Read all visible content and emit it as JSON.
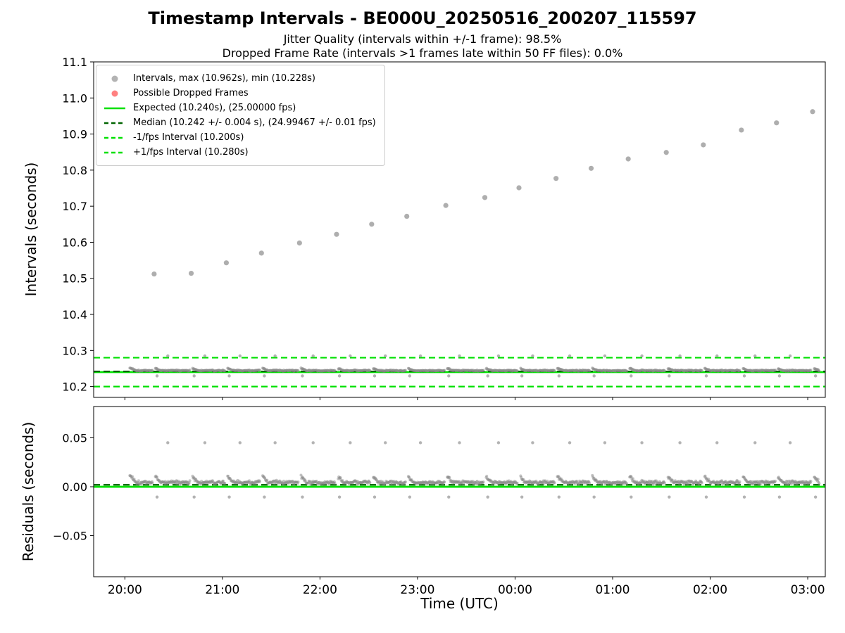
{
  "title": "Timestamp Intervals - BE000U_20250516_200207_115597",
  "subtitles": [
    "Jitter Quality (intervals within +/-1 frame): 98.5%",
    "Dropped Frame Rate (intervals >1 frames late within 50 FF files): 0.0%"
  ],
  "xlabel": "Time (UTC)",
  "seed": 1337,
  "colors": {
    "lime": "#00e000",
    "dark_green": "#006400",
    "gray_marker": "#9a9a9a",
    "band_gray": "#8a8a8a",
    "red_marker": "#ff5555",
    "axis": "#000000",
    "legend_border": "#cccccc"
  },
  "chart_data": [
    {
      "type": "scatter",
      "ylabel": "Intervals (seconds)",
      "ylim": [
        10.17,
        11.1
      ],
      "yticks": [
        10.2,
        10.3,
        10.4,
        10.5,
        10.6,
        10.7,
        10.8,
        10.9,
        11.0,
        11.1
      ],
      "xlim_hours": [
        -0.32,
        7.18
      ],
      "xticks_hours": [
        0,
        1,
        2,
        3,
        4,
        5,
        6,
        7
      ],
      "xtick_labels": [
        "20:00",
        "21:00",
        "22:00",
        "23:00",
        "00:00",
        "01:00",
        "02:00",
        "03:00"
      ],
      "legend": [
        {
          "label": "Intervals, max (10.962s), min (10.228s)",
          "marker": "dot",
          "color": "#9a9a9a"
        },
        {
          "label": "Possible Dropped Frames",
          "marker": "dot",
          "color": "#ff5555"
        },
        {
          "label": "Expected (10.240s), (25.00000 fps)",
          "marker": "line",
          "color": "#00e000"
        },
        {
          "label": "Median (10.242 +/- 0.004 s), (24.99467 +/- 0.01 fps)",
          "marker": "dashed",
          "color": "#006400"
        },
        {
          "label": "-1/fps Interval (10.200s)",
          "marker": "dashed",
          "color": "#00e000"
        },
        {
          "label": "+1/fps Interval (10.280s)",
          "marker": "dashed",
          "color": "#00e000"
        }
      ],
      "lines": {
        "expected": 10.24,
        "median": 10.242,
        "minus_1fps": 10.2,
        "plus_1fps": 10.28
      },
      "series": {
        "drift_outliers": {
          "x": [
            0.3,
            0.68,
            1.04,
            1.4,
            1.79,
            2.17,
            2.53,
            2.89,
            3.29,
            3.69,
            4.04,
            4.42,
            4.78,
            5.16,
            5.55,
            5.93,
            6.32,
            6.68,
            7.05
          ],
          "y": [
            10.512,
            10.514,
            10.543,
            10.57,
            10.598,
            10.622,
            10.65,
            10.672,
            10.702,
            10.724,
            10.751,
            10.777,
            10.805,
            10.831,
            10.849,
            10.87,
            10.911,
            10.931,
            10.962
          ]
        },
        "band": {
          "start": 0.05,
          "end": 7.12,
          "step_h": 0.0057,
          "center": 10.2445,
          "jitter": 0.0026,
          "comet_rise": 0.0075,
          "comet_decay_h": 0.07,
          "spike_y": 10.285,
          "spike_offset_h": 0.14,
          "dip_y": 10.2295,
          "dip_offset_h": 0.03,
          "gap_half_h": 0.012
        }
      }
    },
    {
      "type": "scatter",
      "ylabel": "Residuals (seconds)",
      "ylim": [
        -0.092,
        0.082
      ],
      "yticks": [
        -0.05,
        0.0,
        0.05
      ],
      "residual_offset": 10.24,
      "lines": {
        "zero": 0.0,
        "median": 0.002
      }
    }
  ]
}
